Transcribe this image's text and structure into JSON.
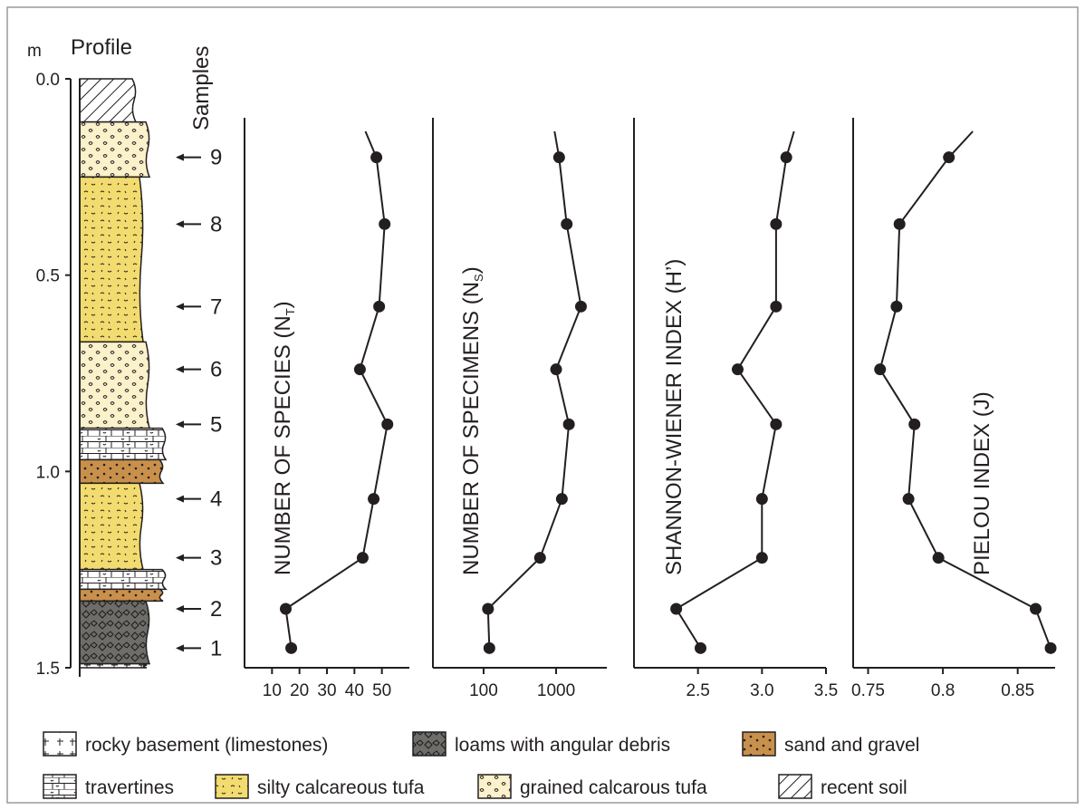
{
  "chart_data": {
    "type": "line",
    "depth_axis": {
      "unit": "m",
      "ticks": [
        "0.0",
        "0.5",
        "1.0",
        "1.5"
      ],
      "tick_values": [
        0.0,
        0.5,
        1.0,
        1.5
      ]
    },
    "profile_label": "Profile",
    "samples_label": "Samples",
    "samples": [
      {
        "label": "1",
        "depth": 1.45
      },
      {
        "label": "2",
        "depth": 1.35
      },
      {
        "label": "3",
        "depth": 1.22
      },
      {
        "label": "4",
        "depth": 1.07
      },
      {
        "label": "5",
        "depth": 0.88
      },
      {
        "label": "6",
        "depth": 0.74
      },
      {
        "label": "7",
        "depth": 0.58
      },
      {
        "label": "8",
        "depth": 0.37
      },
      {
        "label": "9",
        "depth": 0.2
      }
    ],
    "layers": [
      {
        "type": "recent soil",
        "top": 0.0,
        "bottom": 0.11
      },
      {
        "type": "grained calcarous tufa",
        "top": 0.11,
        "bottom": 0.25
      },
      {
        "type": "silty calcareous tufa",
        "top": 0.25,
        "bottom": 0.67
      },
      {
        "type": "grained calcarous tufa",
        "top": 0.67,
        "bottom": 0.89
      },
      {
        "type": "travertines",
        "top": 0.89,
        "bottom": 0.97
      },
      {
        "type": "sand and gravel",
        "top": 0.97,
        "bottom": 1.03
      },
      {
        "type": "silty calcareous tufa",
        "top": 1.03,
        "bottom": 1.25
      },
      {
        "type": "travertines",
        "top": 1.25,
        "bottom": 1.3
      },
      {
        "type": "sand and gravel",
        "top": 1.3,
        "bottom": 1.33
      },
      {
        "type": "loams with angular debris",
        "top": 1.33,
        "bottom": 1.49
      },
      {
        "type": "rocky basement (limestones)",
        "top": 1.49,
        "bottom": 1.5
      }
    ],
    "panels": [
      {
        "title": "NUMBER OF SPECIES (N",
        "title_sub": "T",
        "title_end": ")",
        "scale": "linear",
        "xlim": [
          0,
          60
        ],
        "ticks": [
          10,
          20,
          30,
          40,
          50
        ],
        "tick_labels": [
          "10",
          "20",
          "30",
          "40",
          "50"
        ],
        "values": [
          17,
          15,
          43,
          47,
          52,
          42,
          49,
          51,
          48
        ],
        "trend_top": 44
      },
      {
        "title": "NUMBER OF SPECIMENS (N",
        "title_sub": "S",
        "title_end": ")",
        "scale": "log",
        "xlim": [
          20,
          5000
        ],
        "ticks": [
          100,
          1000
        ],
        "tick_labels": [
          "100",
          "1000"
        ],
        "values": [
          120,
          115,
          600,
          1200,
          1500,
          1000,
          2200,
          1400,
          1100
        ],
        "trend_top": 950
      },
      {
        "title": "SHANNON-WIENER INDEX (H’)",
        "title_sub": "",
        "title_end": "",
        "scale": "linear",
        "xlim": [
          2.0,
          3.5
        ],
        "ticks": [
          2.5,
          3.0,
          3.5
        ],
        "tick_labels": [
          "2.5",
          "3.0",
          "3.5"
        ],
        "values": [
          2.52,
          2.33,
          3.0,
          3.0,
          3.11,
          2.81,
          3.11,
          3.11,
          3.19
        ],
        "trend_top": 3.25
      },
      {
        "title": "PIELOU INDEX (J)",
        "title_sub": "",
        "title_end": "",
        "scale": "linear",
        "xlim": [
          0.74,
          0.875
        ],
        "ticks": [
          0.75,
          0.8,
          0.85
        ],
        "tick_labels": [
          "0.75",
          "0.8",
          "0.85"
        ],
        "values": [
          0.872,
          0.862,
          0.797,
          0.777,
          0.781,
          0.758,
          0.769,
          0.771,
          0.804
        ],
        "trend_top": 0.82
      }
    ]
  },
  "legend": [
    {
      "pattern": "rock",
      "label": "rocky basement (limestones)"
    },
    {
      "pattern": "loam",
      "label": "loams with angular debris"
    },
    {
      "pattern": "sand",
      "label": "sand and gravel"
    },
    {
      "pattern": "trav",
      "label": "travertines"
    },
    {
      "pattern": "silty",
      "label": "silty calcareous tufa"
    },
    {
      "pattern": "grained",
      "label": "grained calcarous tufa"
    },
    {
      "pattern": "soil",
      "label": "recent soil"
    }
  ],
  "colors": {
    "silty": "#f3dc6f",
    "grained": "#fbf1ca",
    "sand": "#c8904b",
    "loam": "#6f6d69",
    "ink": "#231f20"
  }
}
